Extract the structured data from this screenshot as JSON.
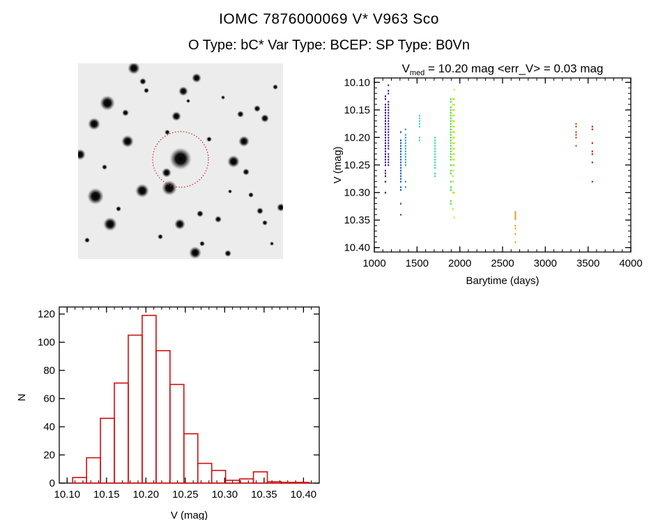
{
  "header": {
    "title_line1": "IOMC 7876000069    V* V963 Sco",
    "title_line2": "O Type: bC*  Var Type: BCEP:  SP Type: B0Vn"
  },
  "finder_image": {
    "description_icon": "star-field-image",
    "circle_color": "#d02020"
  },
  "chart_data": [
    {
      "type": "scatter",
      "title_main": "V",
      "title_sub": "med",
      "title_rest": " = 10.20 mag <err_V> = 0.03 mag",
      "xlabel": "Barytime (days)",
      "ylabel": "V (mag)",
      "xlim": [
        1000,
        4000
      ],
      "ylim": [
        10.092,
        10.408
      ],
      "y_inverted": true,
      "xticks": [
        1000,
        1500,
        2000,
        2500,
        3000,
        3500,
        4000
      ],
      "xtick_labels": [
        "1000",
        "1500",
        "2000",
        "2500",
        "3000",
        "3500",
        "4000"
      ],
      "yticks": [
        10.1,
        10.15,
        10.2,
        10.25,
        10.3,
        10.35,
        10.4
      ],
      "ytick_labels": [
        "10.10",
        "10.15",
        "10.20",
        "10.25",
        "10.30",
        "10.35",
        "10.40"
      ],
      "grid": false,
      "groups": [
        {
          "x": 1130,
          "color": "#3a0a6e",
          "y": [
            10.125,
            10.13,
            10.14,
            10.145,
            10.15,
            10.155,
            10.16,
            10.165,
            10.17,
            10.175,
            10.18,
            10.185,
            10.19,
            10.195,
            10.2,
            10.205,
            10.21,
            10.215,
            10.22,
            10.225,
            10.23,
            10.235,
            10.24,
            10.245,
            10.25,
            10.26,
            10.265,
            10.27,
            10.28,
            10.3
          ]
        },
        {
          "x": 1165,
          "color": "#4a1aa8",
          "y": [
            10.105,
            10.115,
            10.12,
            10.135,
            10.14,
            10.145,
            10.15,
            10.155,
            10.16,
            10.165,
            10.17,
            10.175,
            10.18,
            10.185,
            10.19,
            10.195,
            10.2,
            10.205,
            10.21,
            10.215,
            10.22,
            10.23,
            10.235,
            10.24,
            10.245,
            10.25
          ]
        },
        {
          "x": 1310,
          "color": "#2060c0",
          "y": [
            10.19,
            10.205,
            10.21,
            10.215,
            10.22,
            10.225,
            10.23,
            10.235,
            10.24,
            10.245,
            10.25,
            10.255,
            10.26,
            10.265,
            10.27,
            10.275,
            10.28,
            10.29,
            10.295,
            10.32,
            10.34
          ]
        },
        {
          "x": 1365,
          "color": "#3098d8",
          "y": [
            10.185,
            10.195,
            10.2,
            10.205,
            10.21,
            10.215,
            10.22,
            10.225,
            10.23,
            10.235,
            10.24,
            10.245,
            10.25,
            10.28,
            10.29
          ]
        },
        {
          "x": 1530,
          "color": "#30d8e8",
          "y": [
            10.16,
            10.165,
            10.17,
            10.175,
            10.18,
            10.2,
            10.205
          ]
        },
        {
          "x": 1710,
          "color": "#30e0a0",
          "y": [
            10.2,
            10.205,
            10.21,
            10.215,
            10.22,
            10.225,
            10.23,
            10.235,
            10.24,
            10.245,
            10.25,
            10.255,
            10.265,
            10.27
          ]
        },
        {
          "x": 1895,
          "color": "#40e040",
          "y": [
            10.13,
            10.135,
            10.145,
            10.15,
            10.155,
            10.16,
            10.165,
            10.17,
            10.175,
            10.18,
            10.185,
            10.19,
            10.195,
            10.2,
            10.205,
            10.21,
            10.215,
            10.22,
            10.225,
            10.23,
            10.235,
            10.24,
            10.25,
            10.26,
            10.265,
            10.28,
            10.29,
            10.295,
            10.315,
            10.32
          ]
        },
        {
          "x": 1920,
          "color": "#a8f020",
          "y": [
            10.13,
            10.14,
            10.15,
            10.16,
            10.17,
            10.18,
            10.19,
            10.2,
            10.21,
            10.22,
            10.23,
            10.24,
            10.25,
            10.26,
            10.27,
            10.28,
            10.3,
            10.33
          ]
        },
        {
          "x": 1935,
          "color": "#f0d820",
          "y": [
            10.113,
            10.13,
            10.14,
            10.15,
            10.16,
            10.17,
            10.18,
            10.19,
            10.2,
            10.21,
            10.22,
            10.23,
            10.24,
            10.25,
            10.3,
            10.345
          ]
        },
        {
          "x": 2650,
          "color": "#e8a020",
          "y": [
            10.335,
            10.338,
            10.34,
            10.343,
            10.345,
            10.348,
            10.36,
            10.365,
            10.375,
            10.39
          ]
        },
        {
          "x": 3360,
          "color": "#c05020",
          "y": [
            10.175,
            10.18,
            10.19,
            10.195,
            10.2,
            10.215
          ]
        },
        {
          "x": 3550,
          "color": "#c02020",
          "y": [
            10.18,
            10.185,
            10.21,
            10.225,
            10.23,
            10.245,
            10.28
          ]
        }
      ]
    },
    {
      "type": "bar",
      "subtype": "histogram",
      "xlabel": "V (mag)",
      "ylabel": "N",
      "xlim": [
        10.09,
        10.42
      ],
      "ylim": [
        0,
        125
      ],
      "xticks": [
        10.1,
        10.15,
        10.2,
        10.25,
        10.3,
        10.35,
        10.4
      ],
      "xtick_labels": [
        "10.10",
        "10.15",
        "10.20",
        "10.25",
        "10.30",
        "10.35",
        "10.40"
      ],
      "yticks": [
        0,
        20,
        40,
        60,
        80,
        100,
        120
      ],
      "ytick_labels": [
        "0",
        "20",
        "40",
        "60",
        "80",
        "100",
        "120"
      ],
      "bin_start": 10.107,
      "bin_width": 0.01765,
      "values": [
        4,
        18,
        46,
        71,
        105,
        119,
        94,
        70,
        35,
        14,
        9,
        2,
        3,
        8,
        1,
        0.5,
        0.5
      ],
      "bar_color": "#d01010",
      "grid": false
    }
  ]
}
